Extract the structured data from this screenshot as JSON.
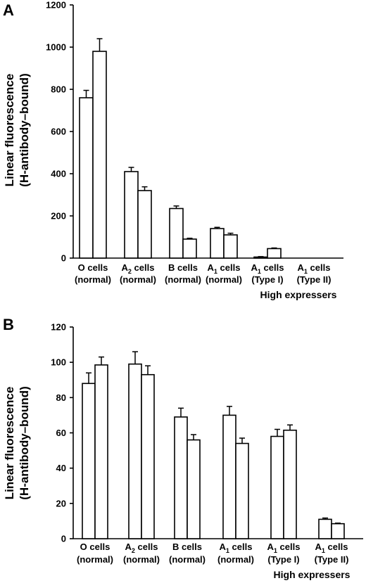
{
  "chart_data": [
    {
      "type": "bar",
      "panel": "A",
      "ylabel_line1": "Linear fluorescence",
      "ylabel_line2": "(H-antibody–bound)",
      "ylim": [
        0,
        1200
      ],
      "yticks": [
        0,
        200,
        400,
        600,
        800,
        1000,
        1200
      ],
      "categories": [
        {
          "base": "O",
          "sub": "",
          "tail": " cells",
          "line2": "(normal)"
        },
        {
          "base": "A",
          "sub": "2",
          "tail": " cells",
          "line2": "(normal)"
        },
        {
          "base": "B",
          "sub": "",
          "tail": " cells",
          "line2": "(normal)"
        },
        {
          "base": "A",
          "sub": "1",
          "tail": " cells",
          "line2": "(normal)"
        },
        {
          "base": "A",
          "sub": "1",
          "tail": " cells",
          "line2": "(Type I)"
        },
        {
          "base": "A",
          "sub": "1",
          "tail": " cells",
          "line2": "(Type II)"
        }
      ],
      "series": [
        {
          "values": [
            760,
            410,
            235,
            140,
            5,
            0
          ],
          "errors": [
            35,
            20,
            12,
            6,
            2,
            0
          ]
        },
        {
          "values": [
            980,
            320,
            90,
            110,
            45,
            0
          ],
          "errors": [
            60,
            18,
            4,
            8,
            3,
            0
          ]
        }
      ],
      "note": "High expressers"
    },
    {
      "type": "bar",
      "panel": "B",
      "ylabel_line1": "Linear fluorescence",
      "ylabel_line2": "(H-antibody–bound)",
      "ylim": [
        0,
        120
      ],
      "yticks": [
        0,
        20,
        40,
        60,
        80,
        100,
        120
      ],
      "categories": [
        {
          "base": "O",
          "sub": "",
          "tail": " cells",
          "line2": "(normal)"
        },
        {
          "base": "A",
          "sub": "2",
          "tail": " cells",
          "line2": "(normal)"
        },
        {
          "base": "B",
          "sub": "",
          "tail": " cells",
          "line2": "(normal)"
        },
        {
          "base": "A",
          "sub": "1",
          "tail": " cells",
          "line2": "(normal)"
        },
        {
          "base": "A",
          "sub": "1",
          "tail": " cells",
          "line2": "(Type I)"
        },
        {
          "base": "A",
          "sub": "1",
          "tail": " cells",
          "line2": "(Type II)"
        }
      ],
      "series": [
        {
          "values": [
            88,
            99,
            69,
            70,
            58,
            11
          ],
          "errors": [
            6,
            7,
            5,
            5,
            4,
            0.7
          ]
        },
        {
          "values": [
            98.5,
            93,
            56,
            54,
            61.5,
            8.5
          ],
          "errors": [
            4.5,
            5,
            3,
            3,
            3,
            0.3
          ]
        }
      ],
      "note": "High expressers"
    }
  ]
}
